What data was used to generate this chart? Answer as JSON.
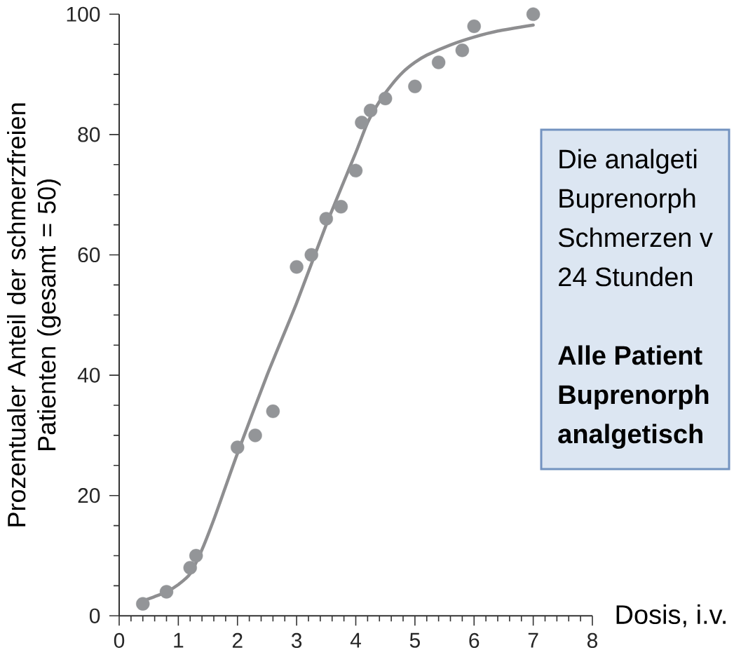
{
  "chart_data": {
    "type": "scatter",
    "xlabel": "Dosis, i.v.",
    "ylabel": "Prozentualer Anteil der schmerzfreien Patienten (gesamt = 50)",
    "xlim": [
      0,
      8
    ],
    "ylim": [
      0,
      100
    ],
    "xticks": [
      0,
      {
        "value": 0.2,
        "label": null
      },
      {
        "value": 0.4,
        "label": null
      },
      {
        "value": 0.6,
        "label": null
      },
      {
        "value": 0.8,
        "label": null
      },
      1,
      {
        "value": 1.2,
        "label": null
      },
      {
        "value": 1.4,
        "label": null
      },
      {
        "value": 1.6,
        "label": null
      },
      {
        "value": 1.8,
        "label": null
      },
      2,
      {
        "value": 2.2,
        "label": null
      },
      {
        "value": 2.4,
        "label": null
      },
      {
        "value": 2.6,
        "label": null
      },
      {
        "value": 2.8,
        "label": null
      },
      3,
      {
        "value": 3.2,
        "label": null
      },
      {
        "value": 3.4,
        "label": null
      },
      {
        "value": 3.6,
        "label": null
      },
      {
        "value": 3.8,
        "label": null
      },
      4,
      {
        "value": 4.2,
        "label": null
      },
      {
        "value": 4.4,
        "label": null
      },
      {
        "value": 4.6,
        "label": null
      },
      {
        "value": 4.8,
        "label": null
      },
      5,
      {
        "value": 5.2,
        "label": null
      },
      {
        "value": 5.4,
        "label": null
      },
      {
        "value": 5.6,
        "label": null
      },
      {
        "value": 5.8,
        "label": null
      },
      6,
      {
        "value": 6.2,
        "label": null
      },
      {
        "value": 6.4,
        "label": null
      },
      {
        "value": 6.6,
        "label": null
      },
      {
        "value": 6.8,
        "label": null
      },
      7,
      {
        "value": 7.2,
        "label": null
      },
      {
        "value": 7.4,
        "label": null
      },
      {
        "value": 7.6,
        "label": null
      },
      {
        "value": 7.8,
        "label": null
      },
      8
    ],
    "yticks": [
      0,
      {
        "value": 5,
        "label": null
      },
      {
        "value": 10,
        "label": null
      },
      {
        "value": 15,
        "label": null
      },
      20,
      {
        "value": 25,
        "label": null
      },
      {
        "value": 30,
        "label": null
      },
      {
        "value": 35,
        "label": null
      },
      40,
      {
        "value": 45,
        "label": null
      },
      {
        "value": 50,
        "label": null
      },
      {
        "value": 55,
        "label": null
      },
      60,
      {
        "value": 65,
        "label": null
      },
      {
        "value": 70,
        "label": null
      },
      {
        "value": 75,
        "label": null
      },
      80,
      {
        "value": 85,
        "label": null
      },
      {
        "value": 90,
        "label": null
      },
      {
        "value": 95,
        "label": null
      },
      100
    ],
    "series": [
      {
        "type": "line",
        "color": "#8e8e90",
        "marker": "none",
        "line_style": "solid",
        "x": [
          0.4,
          0.6,
          0.8,
          1.0,
          1.2,
          1.4,
          1.6,
          1.8,
          2.0,
          2.5,
          3.0,
          3.5,
          4.0,
          4.2,
          4.4,
          4.6,
          4.8,
          5.0,
          5.2,
          5.6,
          6.0,
          6.4,
          7.0
        ],
        "values": [
          2.5,
          3.2,
          4,
          5.2,
          7,
          11,
          16,
          21.5,
          27,
          40,
          52,
          65,
          77,
          82,
          85.5,
          88.2,
          90.4,
          92,
          93.2,
          94.9,
          96.2,
          97.2,
          98.2
        ]
      },
      {
        "color": "#939598",
        "marker": "circle",
        "x": [
          0.4,
          0.8,
          1.2,
          1.3,
          2.0,
          2.3,
          2.6,
          3.0,
          3.25,
          3.5,
          3.75,
          4.0,
          4.1,
          4.25,
          4.5,
          5.0,
          5.4,
          5.8,
          6.0,
          7.0
        ],
        "values": [
          2,
          4,
          8,
          10,
          28,
          30,
          34,
          58,
          60,
          66,
          68,
          74,
          82,
          84,
          86,
          88,
          92,
          94,
          98,
          100
        ]
      }
    ],
    "annotations": [
      "Die analgeti",
      "Buprenorph",
      "Schmerzen v",
      "24 Stunden",
      "Alle Patient",
      "Buprenorph",
      "analgetisch"
    ]
  }
}
